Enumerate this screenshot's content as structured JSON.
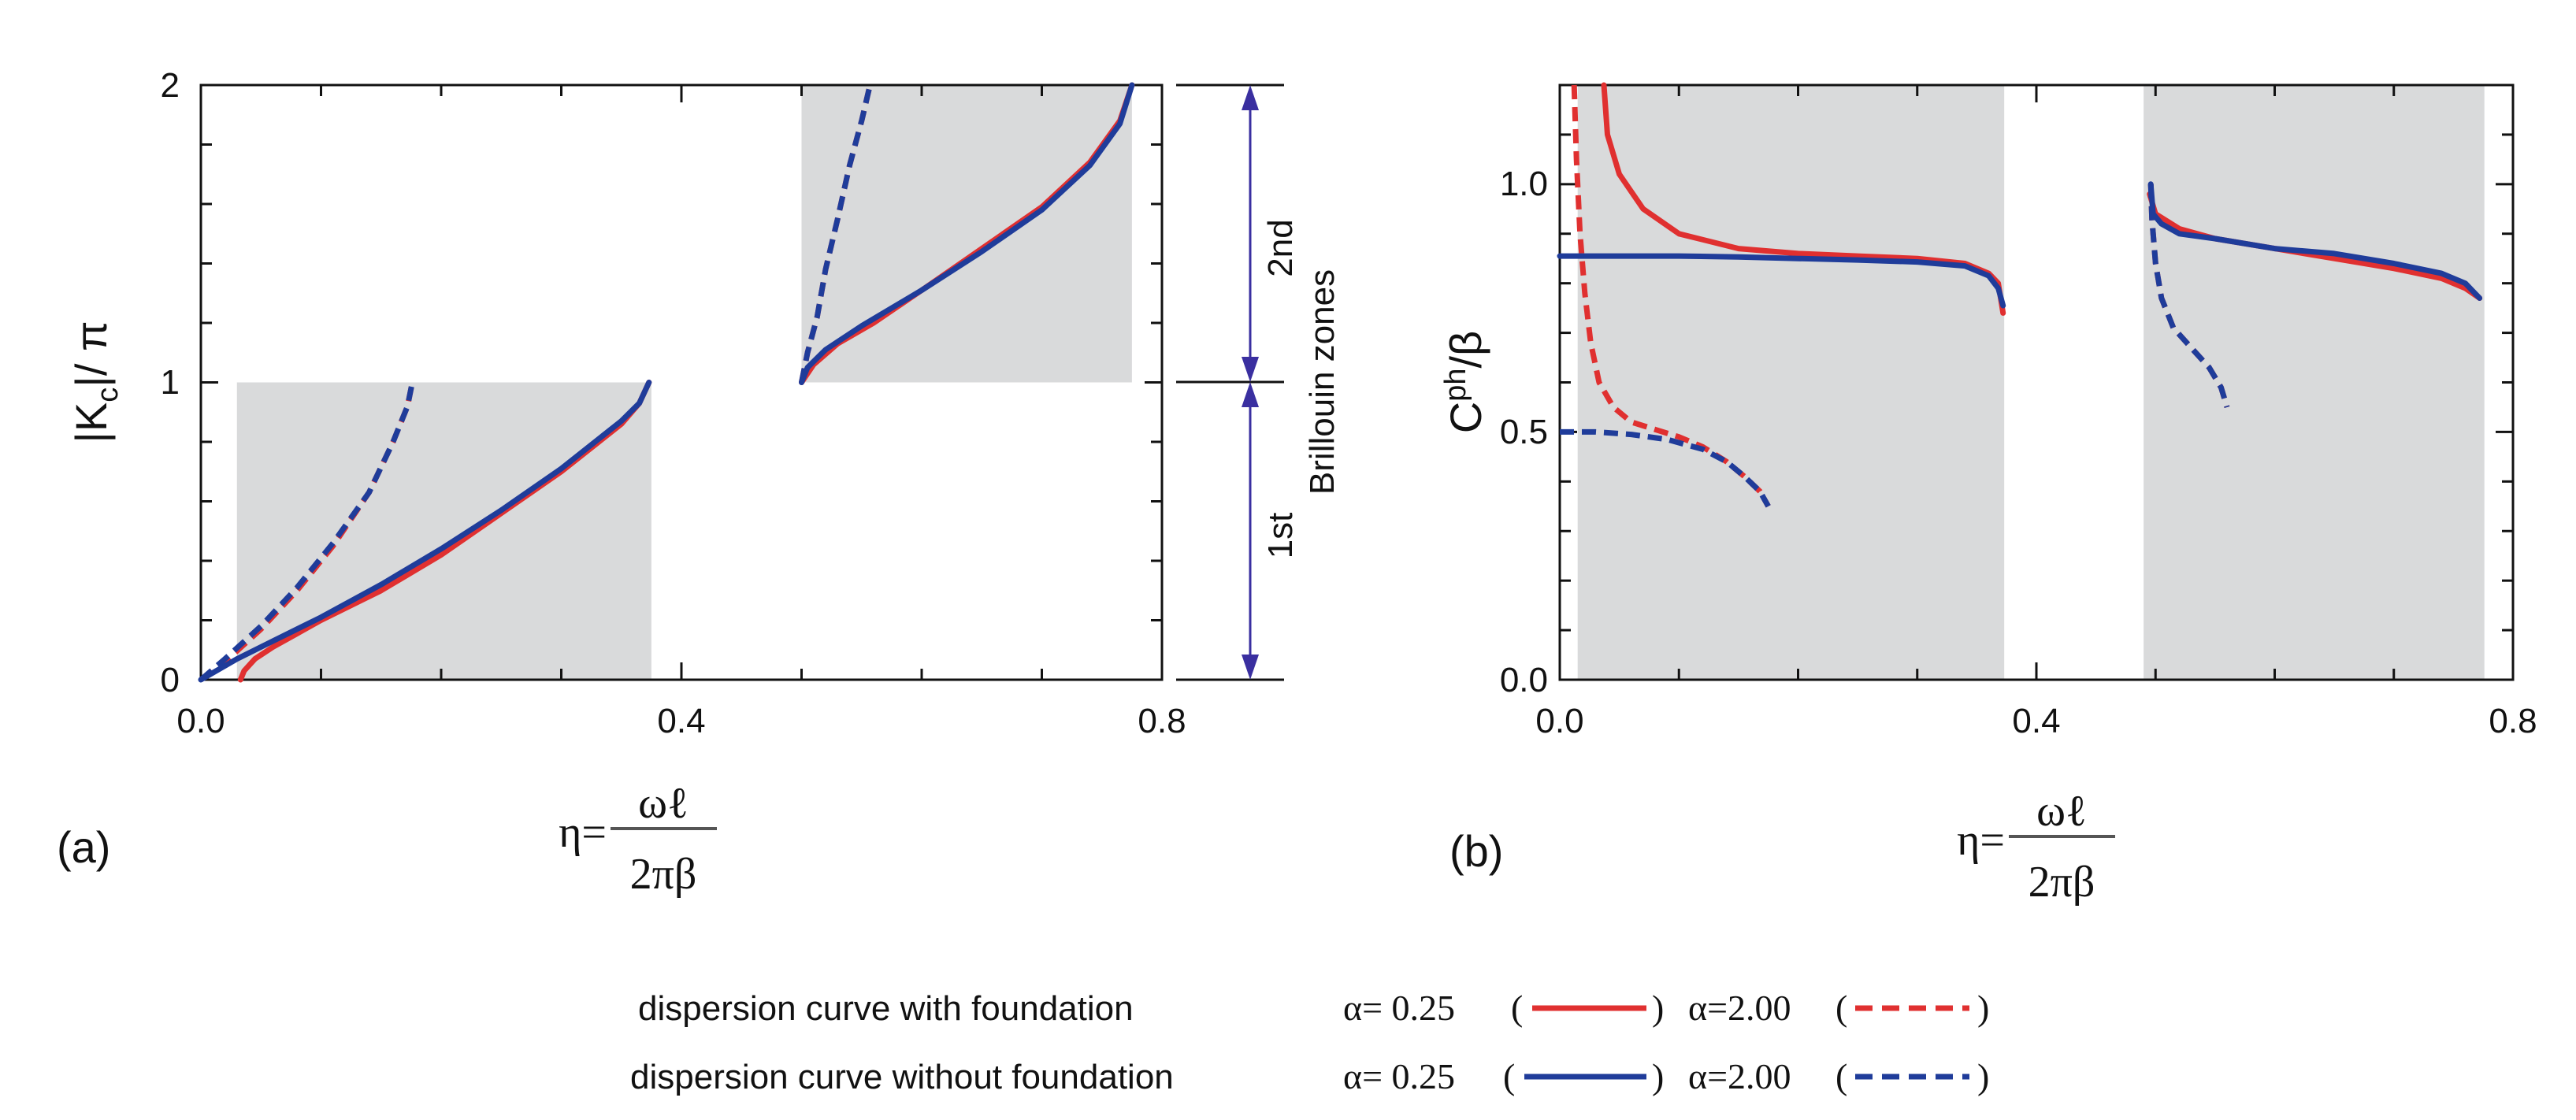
{
  "chart_data": [
    {
      "panel": "(a)",
      "type": "line",
      "xlim": [
        0,
        0.8
      ],
      "ylim": [
        0,
        2
      ],
      "xticks": [
        "0.0",
        "0.4",
        "0.8"
      ],
      "yticks": [
        "0",
        "1",
        "2"
      ],
      "ylabel": {
        "main": "|K",
        "sub": "c",
        "rest": "|/ π"
      },
      "xlabel": {
        "lhs": "η=",
        "numerator": "ωℓ",
        "denominator": "2πβ"
      },
      "shaded_bands": [
        {
          "x": [
            0.03,
            0.375
          ],
          "y": [
            0,
            1
          ]
        },
        {
          "x": [
            0.5,
            0.775
          ],
          "y": [
            1,
            2
          ]
        }
      ],
      "zones": {
        "first": "1st",
        "second": "2nd",
        "caption": "Brillouin zones"
      },
      "series": [
        {
          "name": "with foundation α=0.25",
          "style": "solid",
          "color": "#e03030",
          "segments": [
            [
              [
                0.033,
                0
              ],
              [
                0.036,
                0.03
              ],
              [
                0.045,
                0.07
              ],
              [
                0.06,
                0.11
              ],
              [
                0.1,
                0.2
              ],
              [
                0.15,
                0.3
              ],
              [
                0.2,
                0.42
              ],
              [
                0.25,
                0.56
              ],
              [
                0.3,
                0.7
              ],
              [
                0.35,
                0.86
              ],
              [
                0.365,
                0.93
              ],
              [
                0.373,
                1.0
              ]
            ],
            [
              [
                0.5,
                1.0
              ],
              [
                0.51,
                1.06
              ],
              [
                0.53,
                1.13
              ],
              [
                0.56,
                1.2
              ],
              [
                0.6,
                1.31
              ],
              [
                0.65,
                1.45
              ],
              [
                0.7,
                1.59
              ],
              [
                0.74,
                1.74
              ],
              [
                0.765,
                1.88
              ],
              [
                0.775,
                2.0
              ]
            ]
          ]
        },
        {
          "name": "with foundation α=2.00",
          "style": "dashed",
          "color": "#e03030",
          "segments": [
            [
              [
                0.0,
                0.0
              ],
              [
                0.02,
                0.06
              ],
              [
                0.05,
                0.17
              ],
              [
                0.08,
                0.3
              ],
              [
                0.11,
                0.45
              ],
              [
                0.14,
                0.63
              ],
              [
                0.16,
                0.8
              ],
              [
                0.172,
                0.92
              ],
              [
                0.176,
                1.0
              ]
            ],
            [
              [
                0.5,
                1.0
              ],
              [
                0.505,
                1.1
              ],
              [
                0.513,
                1.22
              ],
              [
                0.52,
                1.38
              ],
              [
                0.53,
                1.55
              ],
              [
                0.54,
                1.73
              ],
              [
                0.55,
                1.88
              ],
              [
                0.557,
                2.0
              ]
            ]
          ]
        },
        {
          "name": "without foundation α=0.25",
          "style": "solid",
          "color": "#1f3c9a",
          "segments": [
            [
              [
                0.0,
                0.0
              ],
              [
                0.03,
                0.07
              ],
              [
                0.06,
                0.13
              ],
              [
                0.1,
                0.21
              ],
              [
                0.15,
                0.32
              ],
              [
                0.2,
                0.44
              ],
              [
                0.25,
                0.57
              ],
              [
                0.3,
                0.71
              ],
              [
                0.35,
                0.87
              ],
              [
                0.365,
                0.93
              ],
              [
                0.373,
                1.0
              ]
            ],
            [
              [
                0.5,
                1.0
              ],
              [
                0.505,
                1.05
              ],
              [
                0.52,
                1.11
              ],
              [
                0.55,
                1.19
              ],
              [
                0.6,
                1.31
              ],
              [
                0.65,
                1.44
              ],
              [
                0.7,
                1.58
              ],
              [
                0.74,
                1.73
              ],
              [
                0.765,
                1.87
              ],
              [
                0.775,
                2.0
              ]
            ]
          ]
        },
        {
          "name": "without foundation α=2.00",
          "style": "dashed",
          "color": "#1f3c9a",
          "segments": [
            [
              [
                0.0,
                0.0
              ],
              [
                0.02,
                0.07
              ],
              [
                0.05,
                0.18
              ],
              [
                0.08,
                0.31
              ],
              [
                0.11,
                0.46
              ],
              [
                0.14,
                0.63
              ],
              [
                0.16,
                0.8
              ],
              [
                0.172,
                0.92
              ],
              [
                0.176,
                1.0
              ]
            ],
            [
              [
                0.5,
                1.0
              ],
              [
                0.505,
                1.1
              ],
              [
                0.513,
                1.22
              ],
              [
                0.52,
                1.38
              ],
              [
                0.53,
                1.55
              ],
              [
                0.54,
                1.73
              ],
              [
                0.55,
                1.88
              ],
              [
                0.557,
                2.0
              ]
            ]
          ]
        }
      ]
    },
    {
      "panel": "(b)",
      "type": "line",
      "xlim": [
        0,
        0.8
      ],
      "ylim": [
        0,
        1.2
      ],
      "xticks": [
        "0.0",
        "0.4",
        "0.8"
      ],
      "yticks": [
        "0.0",
        "0.5",
        "1.0"
      ],
      "ylabel": {
        "main": "C",
        "sup": "ph",
        "rest": "/β"
      },
      "xlabel": {
        "lhs": "η=",
        "numerator": "ωℓ",
        "denominator": "2πβ"
      },
      "shaded_bands": [
        {
          "x": [
            0.015,
            0.373
          ],
          "y": [
            0,
            1.2
          ]
        },
        {
          "x": [
            0.49,
            0.776
          ],
          "y": [
            0,
            1.2
          ]
        }
      ],
      "series": [
        {
          "name": "with foundation α=0.25",
          "style": "solid",
          "color": "#e03030",
          "segments": [
            [
              [
                0.037,
                1.2
              ],
              [
                0.04,
                1.1
              ],
              [
                0.05,
                1.02
              ],
              [
                0.07,
                0.95
              ],
              [
                0.1,
                0.9
              ],
              [
                0.15,
                0.87
              ],
              [
                0.2,
                0.86
              ],
              [
                0.25,
                0.855
              ],
              [
                0.3,
                0.85
              ],
              [
                0.34,
                0.84
              ],
              [
                0.36,
                0.82
              ],
              [
                0.368,
                0.8
              ],
              [
                0.372,
                0.74
              ]
            ],
            [
              [
                0.495,
                0.98
              ],
              [
                0.5,
                0.94
              ],
              [
                0.52,
                0.91
              ],
              [
                0.55,
                0.89
              ],
              [
                0.6,
                0.87
              ],
              [
                0.65,
                0.85
              ],
              [
                0.7,
                0.83
              ],
              [
                0.74,
                0.81
              ],
              [
                0.76,
                0.79
              ],
              [
                0.772,
                0.77
              ]
            ]
          ]
        },
        {
          "name": "with foundation α=2.00",
          "style": "dashed",
          "color": "#e03030",
          "segments": [
            [
              [
                0.012,
                1.2
              ],
              [
                0.014,
                1.05
              ],
              [
                0.017,
                0.9
              ],
              [
                0.021,
                0.78
              ],
              [
                0.026,
                0.68
              ],
              [
                0.033,
                0.6
              ],
              [
                0.045,
                0.55
              ],
              [
                0.06,
                0.52
              ],
              [
                0.08,
                0.505
              ],
              [
                0.1,
                0.49
              ],
              [
                0.12,
                0.47
              ],
              [
                0.14,
                0.44
              ],
              [
                0.155,
                0.41
              ],
              [
                0.168,
                0.38
              ],
              [
                0.175,
                0.35
              ]
            ],
            [
              [
                0.496,
                1.0
              ],
              [
                0.497,
                0.93
              ],
              [
                0.5,
                0.84
              ],
              [
                0.505,
                0.77
              ],
              [
                0.515,
                0.71
              ],
              [
                0.53,
                0.67
              ],
              [
                0.545,
                0.63
              ],
              [
                0.555,
                0.59
              ],
              [
                0.56,
                0.55
              ]
            ]
          ]
        },
        {
          "name": "without foundation α=0.25",
          "style": "solid",
          "color": "#1f3c9a",
          "segments": [
            [
              [
                0.0,
                0.855
              ],
              [
                0.05,
                0.855
              ],
              [
                0.1,
                0.855
              ],
              [
                0.15,
                0.853
              ],
              [
                0.2,
                0.85
              ],
              [
                0.25,
                0.847
              ],
              [
                0.3,
                0.843
              ],
              [
                0.34,
                0.835
              ],
              [
                0.36,
                0.815
              ],
              [
                0.368,
                0.79
              ],
              [
                0.372,
                0.755
              ]
            ],
            [
              [
                0.496,
                1.0
              ],
              [
                0.498,
                0.94
              ],
              [
                0.505,
                0.92
              ],
              [
                0.52,
                0.9
              ],
              [
                0.55,
                0.89
              ],
              [
                0.6,
                0.87
              ],
              [
                0.65,
                0.86
              ],
              [
                0.7,
                0.84
              ],
              [
                0.74,
                0.82
              ],
              [
                0.76,
                0.8
              ],
              [
                0.772,
                0.77
              ]
            ]
          ]
        },
        {
          "name": "without foundation α=2.00",
          "style": "dashed",
          "color": "#1f3c9a",
          "segments": [
            [
              [
                0.0,
                0.5
              ],
              [
                0.03,
                0.5
              ],
              [
                0.06,
                0.495
              ],
              [
                0.09,
                0.485
              ],
              [
                0.12,
                0.465
              ],
              [
                0.14,
                0.44
              ],
              [
                0.155,
                0.41
              ],
              [
                0.168,
                0.38
              ],
              [
                0.175,
                0.35
              ]
            ],
            [
              [
                0.496,
                1.0
              ],
              [
                0.497,
                0.93
              ],
              [
                0.5,
                0.84
              ],
              [
                0.505,
                0.77
              ],
              [
                0.515,
                0.71
              ],
              [
                0.53,
                0.67
              ],
              [
                0.545,
                0.63
              ],
              [
                0.555,
                0.59
              ],
              [
                0.56,
                0.55
              ]
            ]
          ]
        }
      ]
    }
  ],
  "legend": {
    "rows": [
      {
        "label": "dispersion curve with foundation",
        "alpha1": "α= 0.25",
        "alpha2": "α=2.00",
        "color": "#e03030"
      },
      {
        "label": "dispersion curve without foundation",
        "alpha1": "α= 0.25",
        "alpha2": "α=2.00",
        "color": "#1f3c9a"
      }
    ],
    "open_paren": "(",
    "close_paren": ")"
  },
  "colors": {
    "band": "#d9dadb",
    "axis": "#111111",
    "arrow": "#3a2fa0"
  }
}
